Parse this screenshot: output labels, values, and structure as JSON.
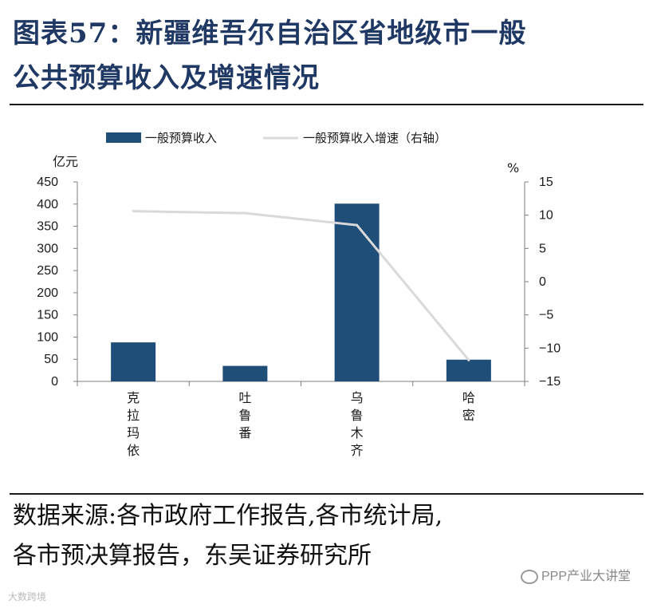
{
  "title": {
    "line1": "图表57：新疆维吾尔自治区省地级市一般",
    "line2": "公共预算收入及增速情况"
  },
  "source": {
    "line1": "数据来源:各市政府工作报告,各市统计局,",
    "line2": "各市预决算报告，东吴证券研究所"
  },
  "watermarks": {
    "wechat": "PPP产业大讲堂",
    "corner": "大数跨境"
  },
  "colors": {
    "bar": "#1f4e79",
    "line": "#d9d9d9",
    "title": "#1f3864"
  },
  "chart_data": {
    "type": "bar",
    "categories": [
      "克拉玛依",
      "吐鲁番",
      "乌鲁木齐",
      "哈密"
    ],
    "series": [
      {
        "name": "一般预算收入",
        "type": "bar",
        "axis": "left",
        "values": [
          88,
          35,
          401,
          49
        ]
      },
      {
        "name": "一般预算收入增速（右轴）",
        "type": "line",
        "axis": "right",
        "values": [
          10.6,
          10.3,
          8.5,
          -11.8
        ]
      }
    ],
    "ylabel_left": "亿元",
    "ylabel_right": "%",
    "ylim_left": [
      0,
      450
    ],
    "yticks_left": [
      "0",
      "50",
      "100",
      "150",
      "200",
      "250",
      "300",
      "350",
      "400",
      "450"
    ],
    "ylim_right": [
      -15,
      15
    ],
    "yticks_right": [
      "−15",
      "−10",
      "−5",
      "0",
      "5",
      "10",
      "15"
    ],
    "legend": "top",
    "grid": false
  }
}
